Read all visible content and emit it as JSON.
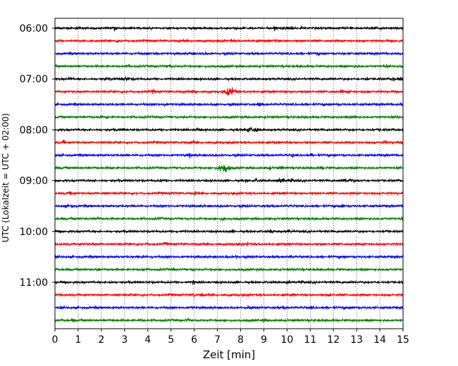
{
  "chart_data": {
    "type": "line",
    "title": "",
    "xlabel": "Zeit  [min]",
    "ylabel": "UTC (Lokalzeit = UTC + 02:00)",
    "xlim": [
      0,
      15
    ],
    "x_ticks": [
      "0",
      "1",
      "2",
      "3",
      "4",
      "5",
      "6",
      "7",
      "8",
      "9",
      "10",
      "11",
      "12",
      "13",
      "14",
      "15"
    ],
    "y_tick_labels": [
      "06:00",
      "07:00",
      "08:00",
      "09:00",
      "10:00",
      "11:00"
    ],
    "grid": "vertical dotted",
    "trace_start_times": [
      "06:00",
      "06:15",
      "06:30",
      "06:45",
      "07:00",
      "07:15",
      "07:30",
      "07:45",
      "08:00",
      "08:15",
      "08:30",
      "08:45",
      "09:00",
      "09:15",
      "09:30",
      "09:45",
      "10:00",
      "10:15",
      "10:30",
      "10:45",
      "11:00",
      "11:15",
      "11:30",
      "11:45"
    ],
    "trace_colors": [
      "#000000",
      "#ff0000",
      "#0000ff",
      "#008000"
    ],
    "events": [
      {
        "trace": "07:15",
        "time_min": 7.5,
        "relative_amplitude": 3.2
      },
      {
        "trace": "08:45",
        "time_min": 7.2,
        "relative_amplitude": 3.8
      },
      {
        "trace": "09:00",
        "time_min": 12.5,
        "relative_amplitude": 1.8
      },
      {
        "trace": "08:00",
        "time_min": 8.3,
        "relative_amplitude": 1.6
      },
      {
        "trace": "07:00",
        "time_min": 3.0,
        "relative_amplitude": 1.5
      },
      {
        "trace": "09:00",
        "time_min": 9.7,
        "relative_amplitude": 1.5
      }
    ]
  }
}
